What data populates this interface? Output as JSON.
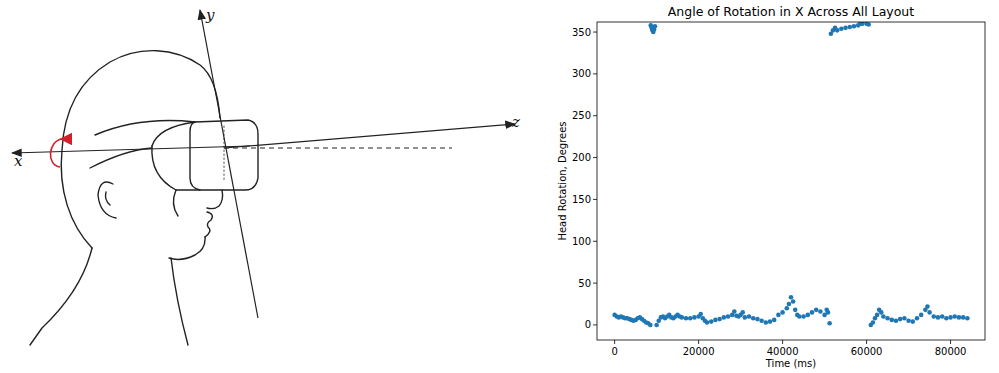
{
  "diagram": {
    "axis_labels": [
      "x",
      "y",
      "z"
    ]
  },
  "chart_data": {
    "type": "scatter",
    "title": "Angle of Rotation in X Across All Layout",
    "x_label": "Time (ms)",
    "y_label": "Head Rotation, Degrees",
    "color": "#1f77b4",
    "marker": "circle",
    "x": [
      0,
      500,
      1000,
      1500,
      2000,
      2500,
      3000,
      3500,
      4000,
      4500,
      5000,
      5500,
      6000,
      6500,
      7000,
      7500,
      8000,
      8500,
      8600,
      8800,
      9000,
      9200,
      9400,
      9600,
      10000,
      10500,
      11000,
      11500,
      12000,
      12500,
      13000,
      13500,
      14000,
      14500,
      15000,
      15500,
      16000,
      17000,
      18000,
      19000,
      20000,
      20500,
      21000,
      21500,
      22000,
      23000,
      24000,
      25000,
      26000,
      27000,
      28000,
      28500,
      29000,
      29500,
      30000,
      30500,
      31000,
      32000,
      33000,
      34000,
      35000,
      36000,
      37000,
      38000,
      39000,
      40000,
      41000,
      41500,
      42000,
      42500,
      43000,
      43500,
      44000,
      45000,
      46000,
      47000,
      48000,
      49000,
      50000,
      50500,
      50800,
      51200,
      51500,
      52000,
      52500,
      53000,
      54000,
      55000,
      56000,
      57000,
      58000,
      58500,
      59000,
      60000,
      60500,
      61000,
      61500,
      62000,
      62500,
      63000,
      63500,
      64000,
      65000,
      66000,
      67000,
      68000,
      69000,
      70000,
      71000,
      72000,
      73000,
      74000,
      74500,
      75000,
      76000,
      77000,
      78000,
      79000,
      80000,
      81000,
      82000,
      83000,
      84000
    ],
    "values": [
      12,
      10,
      9,
      10,
      9,
      8,
      8,
      7,
      6,
      5,
      6,
      8,
      9,
      7,
      5,
      3,
      2,
      0,
      358,
      355,
      352,
      350,
      353,
      357,
      0,
      5,
      9,
      10,
      8,
      10,
      12,
      9,
      8,
      10,
      12,
      10,
      9,
      8,
      8,
      9,
      10,
      13,
      8,
      5,
      3,
      4,
      6,
      7,
      9,
      10,
      12,
      16,
      11,
      10,
      12,
      15,
      9,
      10,
      8,
      7,
      5,
      3,
      4,
      6,
      12,
      15,
      20,
      25,
      33,
      28,
      18,
      12,
      10,
      10,
      12,
      15,
      18,
      16,
      12,
      18,
      15,
      2,
      348,
      352,
      355,
      352,
      354,
      355,
      356,
      357,
      358,
      360,
      360,
      360,
      359,
      0,
      3,
      8,
      12,
      18,
      15,
      10,
      8,
      6,
      5,
      7,
      8,
      5,
      4,
      8,
      12,
      18,
      22,
      15,
      10,
      9,
      10,
      8,
      9,
      10,
      9,
      9,
      8
    ],
    "xlim": [
      -4200,
      88200
    ],
    "ylim": [
      -18,
      362
    ],
    "xticks": [
      0,
      20000,
      40000,
      60000,
      80000
    ],
    "yticks": [
      0,
      50,
      100,
      150,
      200,
      250,
      300,
      350
    ]
  }
}
